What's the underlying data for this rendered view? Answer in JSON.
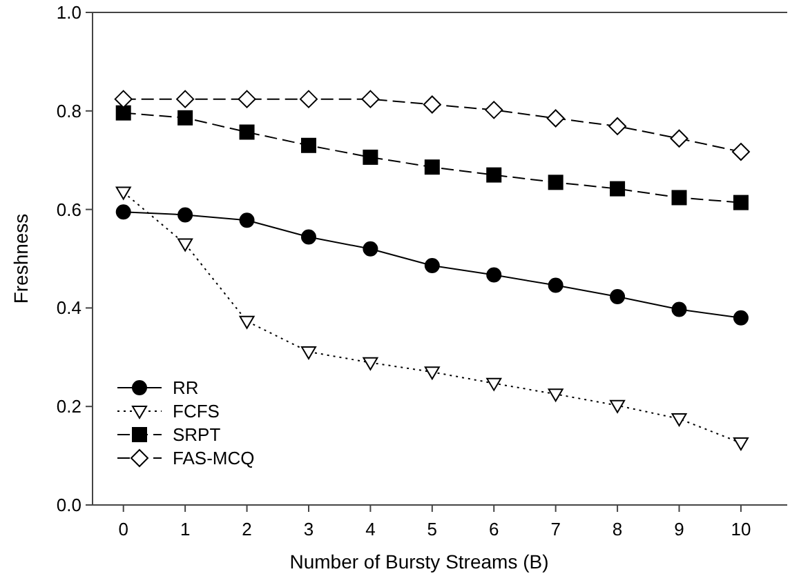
{
  "chart_data": {
    "type": "line",
    "xlabel": "Number of Bursty Streams (B)",
    "ylabel": "Freshness",
    "x": [
      0,
      1,
      2,
      3,
      4,
      5,
      6,
      7,
      8,
      9,
      10
    ],
    "xlim": [
      -0.5,
      10.75
    ],
    "xticks": [
      0,
      1,
      2,
      3,
      4,
      5,
      6,
      7,
      8,
      9,
      10
    ],
    "ylim": [
      0,
      1
    ],
    "yticks": [
      {
        "value": 0,
        "label": "0.0"
      },
      0.2,
      0.4,
      0.6,
      0.8,
      {
        "value": 1,
        "label": "1.0"
      }
    ],
    "legend": "bottom left",
    "grid": false,
    "series": [
      {
        "name": "RR",
        "color": "#000000",
        "marker": "circle",
        "line_style": "solid",
        "values": [
          0.595,
          0.589,
          0.578,
          0.544,
          0.52,
          0.486,
          0.467,
          0.446,
          0.423,
          0.397,
          0.38
        ]
      },
      {
        "name": "FCFS",
        "color": "#000000",
        "marker": "triangle",
        "line_style": "dotted",
        "values": [
          0.635,
          0.53,
          0.373,
          0.311,
          0.289,
          0.27,
          0.247,
          0.225,
          0.202,
          0.175,
          0.126
        ]
      },
      {
        "name": "SRPT",
        "color": "#000000",
        "marker": "square",
        "line_style": "dashed",
        "values": [
          0.796,
          0.786,
          0.757,
          0.73,
          0.706,
          0.686,
          0.67,
          0.655,
          0.642,
          0.624,
          0.614
        ]
      },
      {
        "name": "FAS-MCQ",
        "color": "#000000",
        "marker": "diamond",
        "line_style": "dashed",
        "values": [
          0.824,
          0.824,
          0.824,
          0.824,
          0.824,
          0.813,
          0.802,
          0.785,
          0.769,
          0.744,
          0.717
        ]
      }
    ]
  }
}
